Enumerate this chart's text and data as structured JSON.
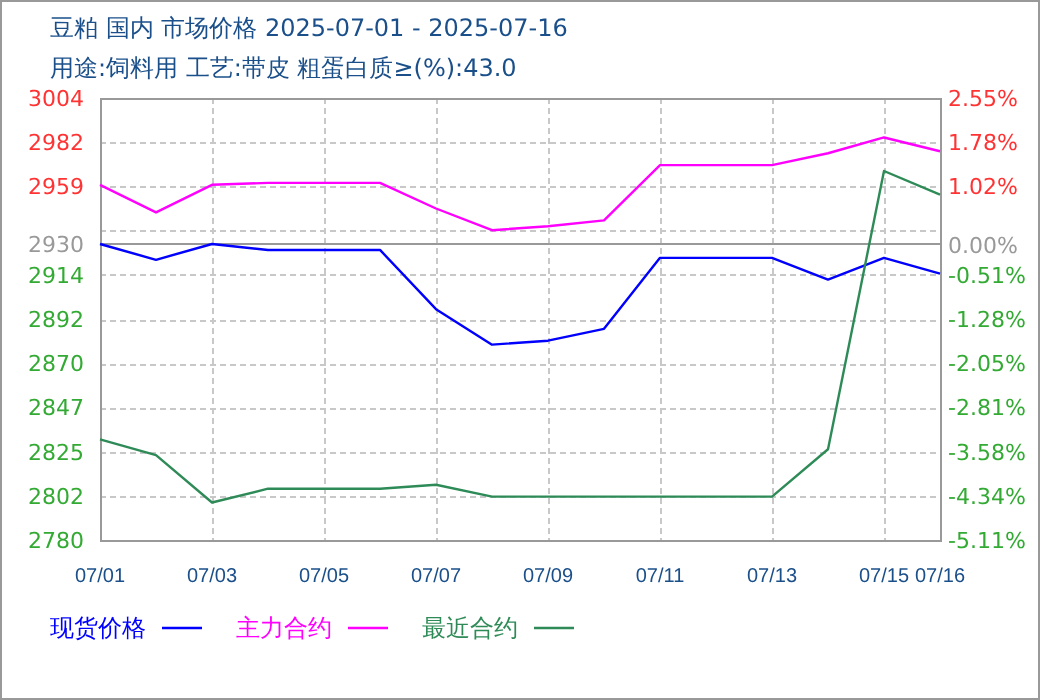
{
  "chart_data": {
    "type": "line",
    "title": "豆粕 国内 市场价格 2025-07-01 - 2025-07-16",
    "subtitle": "用途:饲料用 工艺:带皮 粗蛋白质≥(%):43.0",
    "categories": [
      "07/01",
      null,
      "07/03",
      null,
      "07/05",
      null,
      "07/07",
      null,
      "07/09",
      null,
      "07/11",
      null,
      "07/13",
      null,
      "07/15",
      "07/16"
    ],
    "series": [
      {
        "name": "现货价格",
        "color": "#0000ff",
        "values": [
          2930,
          2922,
          2930,
          2927,
          2927,
          2927,
          2897,
          2879,
          2881,
          2887,
          2923,
          2923,
          2923,
          2912,
          2923,
          2915
        ]
      },
      {
        "name": "主力合约",
        "color": "#ff00ff",
        "values": [
          2960,
          2946,
          2960,
          2961,
          2961,
          2961,
          2948,
          2937,
          2939,
          2942,
          2970,
          2970,
          2970,
          2976,
          2984,
          2977
        ]
      },
      {
        "name": "最近合约",
        "color": "#2e8b57",
        "values": [
          2831,
          2823,
          2799,
          2806,
          2806,
          2806,
          2808,
          2802,
          2802,
          2802,
          2802,
          2802,
          2802,
          2826,
          2967,
          2955
        ]
      }
    ],
    "ylim": [
      2780,
      3004
    ],
    "yticks": [
      3004,
      {
        "value": 2981.6,
        "label": "2982"
      },
      {
        "value": 2959.2,
        "label": "2959"
      },
      {
        "value": 2936.8,
        "label": null
      },
      {
        "value": 2914.4,
        "label": "2914"
      },
      2892,
      {
        "value": 2869.6,
        "label": "2870"
      },
      {
        "value": 2847.2,
        "label": "2847"
      },
      {
        "value": 2824.8,
        "label": "2825"
      },
      {
        "value": 2802.4,
        "label": "2802"
      },
      2780
    ],
    "y2lim": [
      -5.11,
      2.55
    ],
    "y2ticks": [
      {
        "value": 2.55,
        "label": "2.55%"
      },
      {
        "value": 1.784,
        "label": "1.78%"
      },
      {
        "value": 1.018,
        "label": "1.02%"
      },
      {
        "value": 0,
        "label": "0.00%"
      },
      {
        "value": -0.514,
        "label": "-0.51%"
      },
      {
        "value": -1.28,
        "label": "-1.28%"
      },
      {
        "value": -2.046,
        "label": "-2.05%"
      },
      {
        "value": -2.812,
        "label": "-2.81%"
      },
      {
        "value": -3.578,
        "label": "-3.58%"
      },
      {
        "value": -4.344,
        "label": "-4.34%"
      },
      {
        "value": -5.11,
        "label": "-5.11%"
      }
    ],
    "ref_lines": [
      {
        "axis": "y",
        "value": 2930,
        "label": "2930",
        "color": "#999999"
      }
    ],
    "grid": true,
    "legend": "bottom"
  }
}
